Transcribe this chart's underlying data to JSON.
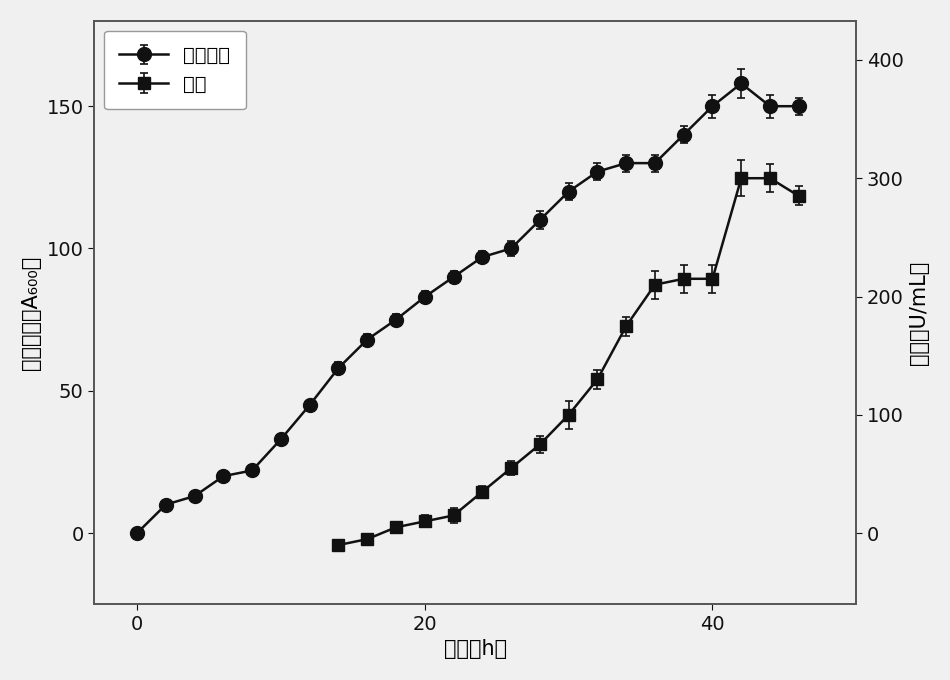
{
  "title": "",
  "xlabel": "时间（h）",
  "ylabel_left": "细胞密度（A₆₀₀）",
  "ylabel_right": "酶活（U/mL）",
  "x_cell": [
    0,
    2,
    4,
    6,
    8,
    10,
    12,
    14,
    16,
    18,
    20,
    22,
    24,
    26,
    28,
    30,
    32,
    34,
    36,
    38,
    40,
    42,
    44,
    46
  ],
  "y_cell": [
    0,
    10,
    13,
    20,
    22,
    33,
    45,
    58,
    68,
    75,
    83,
    90,
    97,
    100,
    110,
    120,
    127,
    130,
    130,
    140,
    150,
    158,
    150,
    150
  ],
  "y_cell_err": [
    0.5,
    0.8,
    0.8,
    1,
    1,
    1.5,
    1.5,
    2,
    2,
    2,
    2,
    2,
    2,
    2.5,
    3,
    3,
    3,
    3,
    3,
    3,
    4,
    5,
    4,
    3
  ],
  "x_enzyme": [
    14,
    16,
    18,
    20,
    22,
    24,
    26,
    28,
    30,
    32,
    34,
    36,
    38,
    40,
    42,
    44,
    46
  ],
  "y_enzyme": [
    -10,
    -5,
    5,
    10,
    15,
    35,
    55,
    75,
    100,
    130,
    175,
    210,
    215,
    215,
    300,
    300,
    285
  ],
  "y_enzyme_err": [
    4,
    4,
    4,
    5,
    6,
    5,
    6,
    7,
    12,
    8,
    8,
    12,
    12,
    12,
    15,
    12,
    8
  ],
  "xlim": [
    -3,
    50
  ],
  "ylim_left": [
    -25,
    180
  ],
  "ylim_right": [
    -60,
    433
  ],
  "xticks": [
    0,
    20,
    40
  ],
  "yticks_left": [
    0,
    50,
    100,
    150
  ],
  "yticks_right": [
    0,
    100,
    200,
    300,
    400
  ],
  "background_color": "#f0f0f0",
  "plot_bg_color": "#f0f0f0",
  "line_color": "#111111",
  "legend_cell": "细胞密度",
  "legend_enzyme": "酶活",
  "fontsize": 15,
  "legend_fontsize": 14,
  "tick_fontsize": 14
}
